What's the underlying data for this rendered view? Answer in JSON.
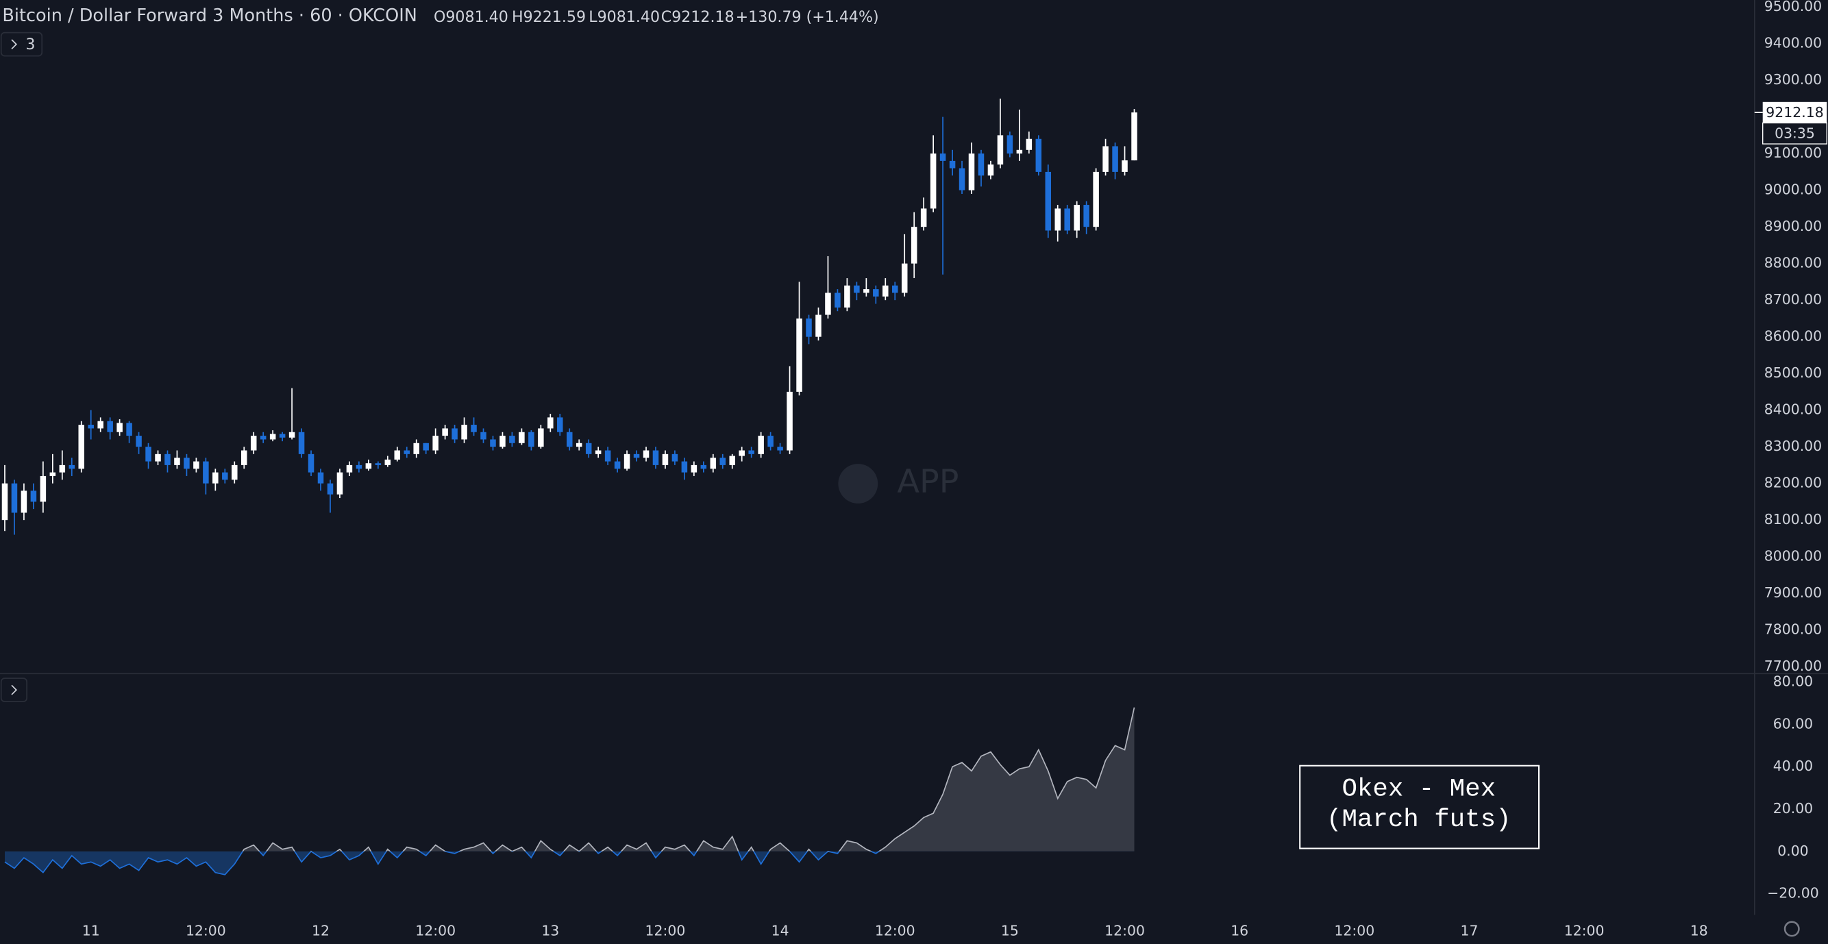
{
  "header": {
    "title": "Bitcoin / Dollar Forward 3 Months · 60 · OKCOIN",
    "ohlc": [
      "O9081.40",
      "H9221.59",
      "L9081.40",
      "C9212.18"
    ],
    "change": "+130.79 (+1.44%)",
    "indicator_count": "3",
    "last_price_label": "9212.18",
    "countdown": "03:35",
    "watermark": "APP"
  },
  "annotation": {
    "lines": [
      "Okex - Mex",
      "(March futs)"
    ]
  },
  "chart_data": [
    {
      "type": "candlestick",
      "up_color": "#ffffff",
      "down_color": "#1e6fd9",
      "xlim": [
        -9.5,
        173.8
      ],
      "ylim": [
        7681,
        9519
      ],
      "yticks": [
        {
          "value": 7700,
          "label": "7700.00"
        },
        {
          "value": 7800,
          "label": "7800.00"
        },
        {
          "value": 7900,
          "label": "7900.00"
        },
        {
          "value": 8000,
          "label": "8000.00"
        },
        {
          "value": 8100,
          "label": "8100.00"
        },
        {
          "value": 8200,
          "label": "8200.00"
        },
        {
          "value": 8300,
          "label": "8300.00"
        },
        {
          "value": 8400,
          "label": "8400.00"
        },
        {
          "value": 8500,
          "label": "8500.00"
        },
        {
          "value": 8600,
          "label": "8600.00"
        },
        {
          "value": 8700,
          "label": "8700.00"
        },
        {
          "value": 8800,
          "label": "8800.00"
        },
        {
          "value": 8900,
          "label": "8900.00"
        },
        {
          "value": 9000,
          "label": "9000.00"
        },
        {
          "value": 9100,
          "label": "9100.00"
        },
        {
          "value": 9200,
          "label": "9200.00"
        },
        {
          "value": 9300,
          "label": "9300.00"
        },
        {
          "value": 9400,
          "label": "9400.00"
        },
        {
          "value": 9500,
          "label": "9500.00"
        }
      ],
      "x": [
        -9,
        -8,
        -7,
        -6,
        -5,
        -4,
        -3,
        -2,
        -1,
        0,
        1,
        2,
        3,
        4,
        5,
        6,
        7,
        8,
        9,
        10,
        11,
        12,
        13,
        14,
        15,
        16,
        17,
        18,
        19,
        20,
        21,
        22,
        23,
        24,
        25,
        26,
        27,
        28,
        29,
        30,
        31,
        32,
        33,
        34,
        35,
        36,
        37,
        38,
        39,
        40,
        41,
        42,
        43,
        44,
        45,
        46,
        47,
        48,
        49,
        50,
        51,
        52,
        53,
        54,
        55,
        56,
        57,
        58,
        59,
        60,
        61,
        62,
        63,
        64,
        65,
        66,
        67,
        68,
        69,
        70,
        71,
        72,
        73,
        74,
        75,
        76,
        77,
        78,
        79,
        80,
        81,
        82,
        83,
        84,
        85,
        86,
        87,
        88,
        89,
        90,
        91,
        92,
        93,
        94,
        95,
        96,
        97,
        98,
        99,
        100,
        101,
        102,
        103,
        104,
        105,
        106,
        107,
        108,
        109
      ],
      "open": [
        8100,
        8200,
        8120,
        8180,
        8150,
        8220,
        8230,
        8250,
        8240,
        8360,
        8350,
        8370,
        8340,
        8365,
        8330,
        8300,
        8260,
        8280,
        8250,
        8270,
        8240,
        8260,
        8200,
        8230,
        8210,
        8250,
        8290,
        8330,
        8320,
        8335,
        8325,
        8340,
        8280,
        8230,
        8200,
        8170,
        8230,
        8250,
        8240,
        8255,
        8250,
        8265,
        8290,
        8280,
        8310,
        8290,
        8330,
        8350,
        8320,
        8360,
        8340,
        8320,
        8300,
        8330,
        8310,
        8340,
        8300,
        8350,
        8380,
        8340,
        8300,
        8310,
        8280,
        8290,
        8260,
        8240,
        8280,
        8270,
        8290,
        8250,
        8280,
        8260,
        8230,
        8250,
        8240,
        8270,
        8250,
        8275,
        8290,
        8280,
        8330,
        8300,
        8290,
        8450,
        8650,
        8600,
        8660,
        8720,
        8680,
        8740,
        8720,
        8730,
        8710,
        8740,
        8720,
        8800,
        8900,
        8950,
        9100,
        9080,
        9060,
        9000,
        9100,
        9040,
        9070,
        9150,
        9100,
        9110,
        9140,
        9050,
        8890,
        8950,
        8890,
        8960,
        8900,
        9050,
        9120,
        9050,
        9081.4
      ],
      "high": [
        8250,
        8210,
        8200,
        8200,
        8260,
        8280,
        8290,
        8270,
        8370,
        8400,
        8380,
        8380,
        8375,
        8370,
        8340,
        8310,
        8290,
        8290,
        8290,
        8280,
        8270,
        8270,
        8240,
        8240,
        8260,
        8300,
        8340,
        8340,
        8345,
        8340,
        8460,
        8350,
        8290,
        8240,
        8210,
        8240,
        8260,
        8260,
        8265,
        8260,
        8275,
        8300,
        8300,
        8320,
        8310,
        8350,
        8360,
        8360,
        8380,
        8380,
        8350,
        8330,
        8340,
        8340,
        8350,
        8345,
        8360,
        8390,
        8390,
        8350,
        8320,
        8320,
        8300,
        8300,
        8270,
        8290,
        8290,
        8300,
        8300,
        8290,
        8290,
        8270,
        8260,
        8260,
        8280,
        8280,
        8280,
        8300,
        8300,
        8340,
        8340,
        8310,
        8520,
        8750,
        8660,
        8680,
        8820,
        8730,
        8760,
        8750,
        8760,
        8740,
        8760,
        8750,
        8880,
        8940,
        8980,
        9150,
        9200,
        9110,
        9080,
        9130,
        9110,
        9080,
        9250,
        9160,
        9220,
        9160,
        9150,
        9070,
        8960,
        8960,
        8970,
        8970,
        9060,
        9140,
        9130,
        9120,
        9221.59
      ],
      "low": [
        8070,
        8060,
        8100,
        8130,
        8120,
        8200,
        8210,
        8220,
        8230,
        8320,
        8340,
        8320,
        8330,
        8310,
        8280,
        8240,
        8250,
        8230,
        8240,
        8220,
        8230,
        8170,
        8180,
        8200,
        8200,
        8240,
        8280,
        8310,
        8315,
        8315,
        8320,
        8270,
        8220,
        8180,
        8120,
        8160,
        8220,
        8230,
        8235,
        8240,
        8245,
        8260,
        8270,
        8270,
        8280,
        8280,
        8320,
        8310,
        8310,
        8330,
        8310,
        8290,
        8295,
        8300,
        8305,
        8290,
        8295,
        8340,
        8330,
        8290,
        8290,
        8270,
        8270,
        8250,
        8230,
        8235,
        8260,
        8260,
        8240,
        8240,
        8250,
        8210,
        8220,
        8230,
        8230,
        8240,
        8240,
        8260,
        8270,
        8270,
        8290,
        8280,
        8280,
        8440,
        8580,
        8590,
        8650,
        8670,
        8670,
        8700,
        8710,
        8690,
        8700,
        8700,
        8710,
        8760,
        8890,
        8940,
        8770,
        9040,
        8990,
        8990,
        9010,
        9030,
        9060,
        9090,
        9080,
        9100,
        9040,
        8870,
        8860,
        8880,
        8870,
        8880,
        8890,
        9040,
        9030,
        9040,
        9081.4
      ],
      "close": [
        8200,
        8120,
        8180,
        8150,
        8220,
        8230,
        8250,
        8240,
        8360,
        8350,
        8370,
        8340,
        8365,
        8330,
        8300,
        8260,
        8280,
        8250,
        8270,
        8240,
        8260,
        8200,
        8230,
        8210,
        8250,
        8290,
        8330,
        8320,
        8335,
        8325,
        8340,
        8280,
        8230,
        8200,
        8170,
        8230,
        8250,
        8240,
        8255,
        8250,
        8265,
        8290,
        8280,
        8310,
        8290,
        8330,
        8350,
        8320,
        8360,
        8340,
        8320,
        8300,
        8330,
        8310,
        8340,
        8300,
        8350,
        8380,
        8340,
        8300,
        8310,
        8280,
        8290,
        8260,
        8240,
        8280,
        8270,
        8290,
        8250,
        8280,
        8260,
        8230,
        8250,
        8240,
        8270,
        8250,
        8275,
        8290,
        8280,
        8330,
        8300,
        8290,
        8450,
        8650,
        8600,
        8660,
        8720,
        8680,
        8740,
        8720,
        8730,
        8710,
        8740,
        8720,
        8800,
        8900,
        8950,
        9100,
        9080,
        9060,
        9000,
        9100,
        9040,
        9070,
        9150,
        9100,
        9110,
        9140,
        9050,
        8890,
        8950,
        8890,
        8960,
        8900,
        9050,
        9120,
        9050,
        9081.4,
        9212.18
      ]
    },
    {
      "type": "area",
      "colors": {
        "positive": "#b2b5be",
        "negative": "#1e6fd9"
      },
      "xlim": [
        -9.5,
        173.8
      ],
      "ylim": [
        -30,
        84
      ],
      "xticks": [
        {
          "value": 0,
          "label": "11"
        },
        {
          "value": 12,
          "label": "12:00"
        },
        {
          "value": 24,
          "label": "12"
        },
        {
          "value": 36,
          "label": "12:00"
        },
        {
          "value": 48,
          "label": "13"
        },
        {
          "value": 60,
          "label": "12:00"
        },
        {
          "value": 72,
          "label": "14"
        },
        {
          "value": 84,
          "label": "12:00"
        },
        {
          "value": 96,
          "label": "15"
        },
        {
          "value": 108,
          "label": "12:00"
        },
        {
          "value": 120,
          "label": "16"
        },
        {
          "value": 132,
          "label": "12:00"
        },
        {
          "value": 144,
          "label": "17"
        },
        {
          "value": 156,
          "label": "12:00"
        },
        {
          "value": 168,
          "label": "18"
        }
      ],
      "yticks": [
        {
          "value": -20,
          "label": "−20.00"
        },
        {
          "value": 0,
          "label": "0.00"
        },
        {
          "value": 20,
          "label": "20.00"
        },
        {
          "value": 40,
          "label": "40.00"
        },
        {
          "value": 60,
          "label": "60.00"
        },
        {
          "value": 80,
          "label": "80.00"
        }
      ],
      "x": [
        -9,
        -8,
        -7,
        -6,
        -5,
        -4,
        -3,
        -2,
        -1,
        0,
        1,
        2,
        3,
        4,
        5,
        6,
        7,
        8,
        9,
        10,
        11,
        12,
        13,
        14,
        15,
        16,
        17,
        18,
        19,
        20,
        21,
        22,
        23,
        24,
        25,
        26,
        27,
        28,
        29,
        30,
        31,
        32,
        33,
        34,
        35,
        36,
        37,
        38,
        39,
        40,
        41,
        42,
        43,
        44,
        45,
        46,
        47,
        48,
        49,
        50,
        51,
        52,
        53,
        54,
        55,
        56,
        57,
        58,
        59,
        60,
        61,
        62,
        63,
        64,
        65,
        66,
        67,
        68,
        69,
        70,
        71,
        72,
        73,
        74,
        75,
        76,
        77,
        78,
        79,
        80,
        81,
        82,
        83,
        84,
        85,
        86,
        87,
        88,
        89,
        90,
        91,
        92,
        93,
        94,
        95,
        96,
        97,
        98,
        99,
        100,
        101,
        102,
        103,
        104,
        105,
        106,
        107,
        108,
        109
      ],
      "values": [
        -5,
        -8,
        -3,
        -6,
        -10,
        -4,
        -8,
        -2,
        -6,
        -5,
        -7,
        -4,
        -8,
        -6,
        -9,
        -3,
        -5,
        -4,
        -6,
        -3,
        -7,
        -5,
        -10,
        -11,
        -6,
        1,
        3,
        -2,
        4,
        1,
        2,
        -5,
        0,
        -3,
        -2,
        1,
        -4,
        -2,
        2,
        -6,
        1,
        -3,
        2,
        1,
        -2,
        3,
        0,
        -1,
        1,
        2,
        4,
        -1,
        3,
        0,
        2,
        -3,
        5,
        1,
        -2,
        3,
        0,
        4,
        -1,
        2,
        -2,
        3,
        1,
        4,
        -3,
        2,
        1,
        3,
        -2,
        5,
        2,
        1,
        7,
        -4,
        2,
        -6,
        1,
        4,
        0,
        -5,
        1,
        -4,
        0,
        -1,
        5,
        4,
        1,
        -1,
        2,
        6,
        9,
        12,
        16,
        18,
        27,
        40,
        42,
        38,
        45,
        47,
        41,
        36,
        39,
        40,
        48,
        38,
        25,
        33,
        35,
        34,
        30,
        43,
        50,
        48,
        68
      ]
    }
  ]
}
